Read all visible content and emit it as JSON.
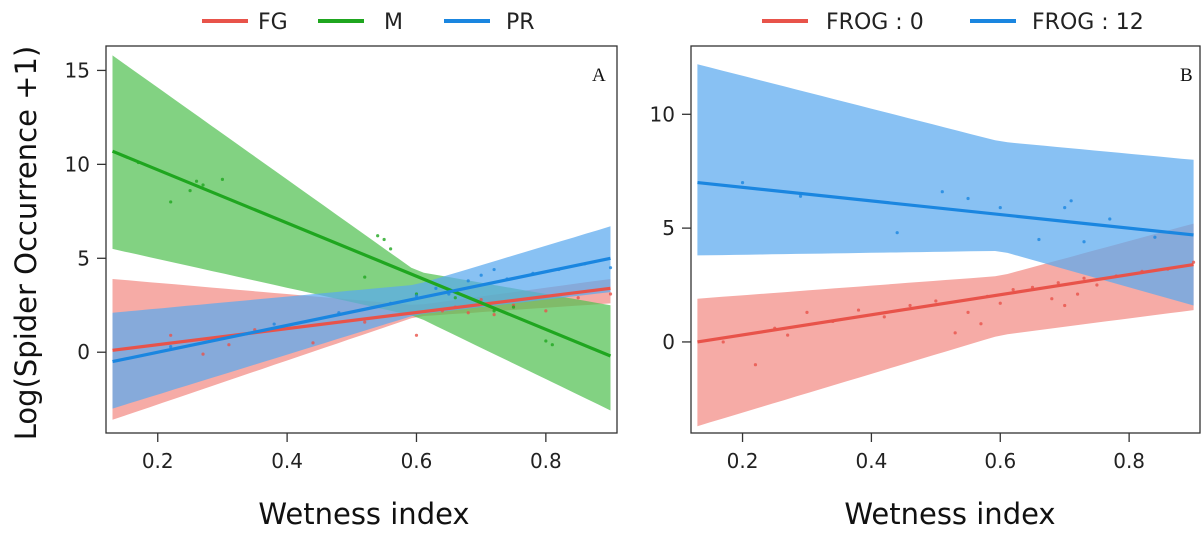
{
  "chart_data": [
    {
      "type": "line",
      "panel_label": "A",
      "xlabel": "Wetness index",
      "ylabel": "Log(Spider Occurrence +1)",
      "xlim": [
        0.12,
        0.91
      ],
      "ylim": [
        -4.3,
        16.3
      ],
      "xticks": [
        0.2,
        0.4,
        0.6,
        0.8
      ],
      "yticks": [
        0,
        5,
        10,
        15
      ],
      "grid": false,
      "legend_position": "top",
      "series": [
        {
          "name": "FG",
          "color": "#e8534a",
          "band_color": "#f28b84",
          "line": [
            [
              0.13,
              0.1
            ],
            [
              0.9,
              3.4
            ]
          ],
          "band": {
            "x": [
              0.13,
              0.6,
              0.9
            ],
            "lower": [
              -3.6,
              1.9,
              2.6
            ],
            "upper": [
              3.9,
              2.5,
              3.9
            ]
          },
          "points": [
            [
              0.22,
              0.9
            ],
            [
              0.27,
              -0.1
            ],
            [
              0.31,
              0.4
            ],
            [
              0.35,
              1.2
            ],
            [
              0.44,
              0.5
            ],
            [
              0.52,
              1.6
            ],
            [
              0.6,
              0.9
            ],
            [
              0.64,
              2.2
            ],
            [
              0.66,
              2.4
            ],
            [
              0.68,
              2.1
            ],
            [
              0.7,
              2.8
            ],
            [
              0.72,
              2.0
            ],
            [
              0.75,
              2.5
            ],
            [
              0.8,
              2.2
            ],
            [
              0.85,
              2.9
            ],
            [
              0.9,
              3.1
            ]
          ]
        },
        {
          "name": "M",
          "color": "#1fa61f",
          "band_color": "#52c152",
          "line": [
            [
              0.13,
              10.7
            ],
            [
              0.9,
              -0.2
            ]
          ],
          "band": {
            "x": [
              0.13,
              0.6,
              0.9
            ],
            "lower": [
              5.5,
              1.9,
              -3.1
            ],
            "upper": [
              15.8,
              4.3,
              2.5
            ]
          },
          "points": [
            [
              0.17,
              10.1
            ],
            [
              0.22,
              8.0
            ],
            [
              0.25,
              8.6
            ],
            [
              0.26,
              9.1
            ],
            [
              0.27,
              8.9
            ],
            [
              0.3,
              9.2
            ],
            [
              0.54,
              6.2
            ],
            [
              0.55,
              6.0
            ],
            [
              0.56,
              5.5
            ],
            [
              0.52,
              4.0
            ],
            [
              0.6,
              3.1
            ],
            [
              0.66,
              2.9
            ],
            [
              0.7,
              2.6
            ],
            [
              0.72,
              2.2
            ],
            [
              0.75,
              2.4
            ],
            [
              0.8,
              0.6
            ],
            [
              0.81,
              0.4
            ]
          ]
        },
        {
          "name": "PR",
          "color": "#1a86e0",
          "band_color": "#5aa9ef",
          "line": [
            [
              0.13,
              -0.5
            ],
            [
              0.9,
              5.0
            ]
          ],
          "band": {
            "x": [
              0.13,
              0.6,
              0.9
            ],
            "lower": [
              -3.0,
              2.0,
              3.2
            ],
            "upper": [
              2.1,
              3.6,
              6.7
            ]
          },
          "points": [
            [
              0.22,
              0.3
            ],
            [
              0.3,
              0.8
            ],
            [
              0.38,
              1.5
            ],
            [
              0.48,
              2.1
            ],
            [
              0.56,
              2.6
            ],
            [
              0.6,
              3.0
            ],
            [
              0.63,
              3.4
            ],
            [
              0.65,
              3.1
            ],
            [
              0.68,
              3.8
            ],
            [
              0.7,
              4.1
            ],
            [
              0.72,
              4.4
            ],
            [
              0.74,
              3.9
            ],
            [
              0.78,
              4.2
            ],
            [
              0.82,
              4.4
            ],
            [
              0.86,
              4.7
            ],
            [
              0.9,
              4.5
            ]
          ]
        }
      ],
      "overlap_color": "#7f6f9a"
    },
    {
      "type": "line",
      "panel_label": "B",
      "xlabel": "Wetness index",
      "ylabel": "",
      "xlim": [
        0.12,
        0.91
      ],
      "ylim": [
        -4.0,
        13.0
      ],
      "xticks": [
        0.2,
        0.4,
        0.6,
        0.8
      ],
      "yticks": [
        0,
        5,
        10
      ],
      "grid": false,
      "legend_position": "top",
      "series": [
        {
          "name": "FROG : 0",
          "color": "#e8534a",
          "band_color": "#f28b84",
          "line": [
            [
              0.13,
              0.0
            ],
            [
              0.9,
              3.4
            ]
          ],
          "band": {
            "x": [
              0.13,
              0.6,
              0.9
            ],
            "lower": [
              -3.7,
              0.3,
              1.4
            ],
            "upper": [
              1.9,
              2.9,
              5.2
            ]
          },
          "points": [
            [
              0.17,
              0.0
            ],
            [
              0.22,
              -1.0
            ],
            [
              0.25,
              0.6
            ],
            [
              0.27,
              0.3
            ],
            [
              0.3,
              1.3
            ],
            [
              0.34,
              0.9
            ],
            [
              0.38,
              1.4
            ],
            [
              0.42,
              1.1
            ],
            [
              0.46,
              1.6
            ],
            [
              0.5,
              1.8
            ],
            [
              0.53,
              0.4
            ],
            [
              0.55,
              1.3
            ],
            [
              0.57,
              0.8
            ],
            [
              0.58,
              2.0
            ],
            [
              0.6,
              1.7
            ],
            [
              0.62,
              2.3
            ],
            [
              0.65,
              2.4
            ],
            [
              0.68,
              1.9
            ],
            [
              0.69,
              2.6
            ],
            [
              0.7,
              1.6
            ],
            [
              0.72,
              2.1
            ],
            [
              0.73,
              2.8
            ],
            [
              0.75,
              2.5
            ],
            [
              0.78,
              2.9
            ],
            [
              0.82,
              3.1
            ],
            [
              0.86,
              3.2
            ],
            [
              0.9,
              3.5
            ]
          ]
        },
        {
          "name": "FROG : 12",
          "color": "#1a86e0",
          "band_color": "#5aa9ef",
          "line": [
            [
              0.13,
              7.0
            ],
            [
              0.9,
              4.7
            ]
          ],
          "band": {
            "x": [
              0.13,
              0.6,
              0.9
            ],
            "lower": [
              3.8,
              4.0,
              1.6
            ],
            "upper": [
              12.2,
              8.8,
              8.0
            ]
          },
          "points": [
            [
              0.2,
              7.0
            ],
            [
              0.29,
              6.4
            ],
            [
              0.44,
              4.8
            ],
            [
              0.51,
              6.6
            ],
            [
              0.55,
              6.3
            ],
            [
              0.6,
              5.9
            ],
            [
              0.66,
              4.5
            ],
            [
              0.7,
              5.9
            ],
            [
              0.71,
              6.2
            ],
            [
              0.73,
              4.4
            ],
            [
              0.77,
              5.4
            ],
            [
              0.84,
              4.6
            ]
          ]
        }
      ],
      "overlap_color": "#7f6f9a"
    }
  ]
}
